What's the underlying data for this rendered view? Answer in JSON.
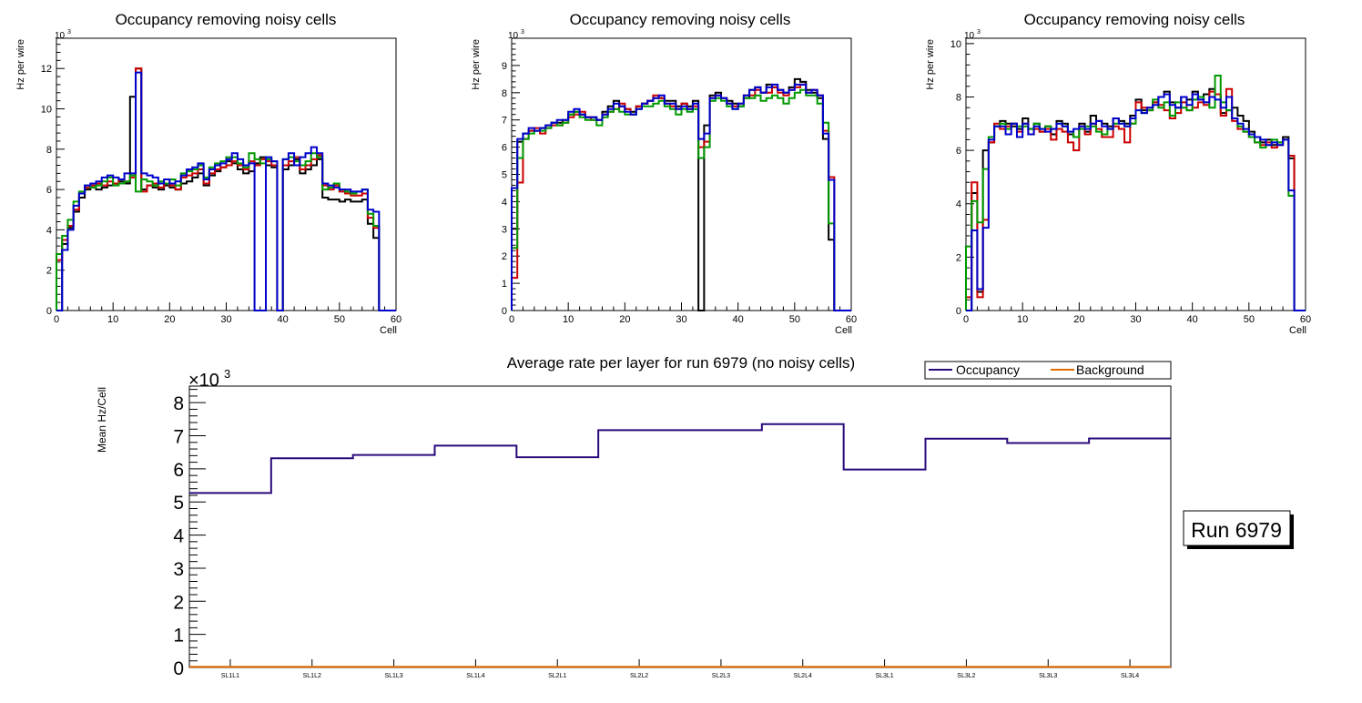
{
  "chart_data": [
    {
      "type": "line",
      "title": "Occupancy removing noisy cells",
      "xlabel": "Cell",
      "ylabel": "Hz per wire",
      "multiplier": "10",
      "multiplier_exp": "3",
      "xlim": [
        0,
        60
      ],
      "ylim": [
        0,
        13.5
      ],
      "x_ticks": [
        0,
        10,
        20,
        30,
        40,
        50,
        60
      ],
      "y_ticks": [
        0,
        2,
        4,
        6,
        8,
        10,
        12
      ],
      "series": [
        {
          "name": "black",
          "color": "#000000",
          "values": [
            0,
            3.3,
            4.1,
            4.9,
            5.6,
            6.0,
            6.1,
            6.0,
            6.1,
            6.2,
            6.3,
            6.4,
            6.3,
            10.6,
            12.0,
            6.0,
            6.2,
            6.1,
            6.0,
            6.2,
            6.1,
            6.0,
            6.3,
            6.4,
            6.6,
            6.8,
            6.2,
            6.7,
            6.9,
            7.1,
            7.4,
            7.3,
            7.0,
            6.8,
            6.9,
            7.3,
            7.6,
            7.2,
            7.1,
            0,
            7.0,
            7.2,
            7.5,
            6.8,
            7.0,
            7.2,
            7.5,
            5.6,
            5.5,
            5.5,
            5.4,
            5.5,
            5.4,
            5.4,
            5.5,
            4.3,
            3.6,
            0,
            0,
            0
          ]
        },
        {
          "name": "red",
          "color": "#cc0000",
          "values": [
            2.5,
            3.5,
            4.2,
            5.0,
            5.8,
            6.1,
            6.2,
            6.3,
            6.2,
            6.4,
            6.3,
            6.5,
            6.4,
            6.6,
            12.0,
            5.9,
            6.2,
            6.3,
            6.1,
            6.3,
            6.2,
            6.0,
            6.6,
            6.7,
            6.8,
            7.0,
            6.3,
            6.8,
            7.0,
            7.1,
            7.2,
            7.4,
            7.2,
            7.0,
            7.4,
            7.2,
            7.5,
            7.4,
            7.2,
            0,
            7.2,
            7.4,
            7.6,
            7.0,
            7.2,
            7.5,
            7.7,
            6.2,
            6.0,
            6.2,
            5.9,
            5.8,
            5.7,
            5.7,
            5.8,
            4.6,
            4.1,
            0,
            0,
            0
          ]
        },
        {
          "name": "green",
          "color": "#009900",
          "values": [
            2.8,
            3.7,
            4.5,
            5.4,
            5.9,
            6.2,
            6.1,
            6.2,
            6.4,
            6.6,
            6.2,
            6.3,
            6.4,
            6.7,
            5.9,
            6.5,
            6.4,
            6.2,
            6.4,
            6.3,
            6.5,
            6.2,
            6.8,
            6.9,
            7.0,
            7.2,
            6.6,
            7.1,
            7.3,
            7.4,
            7.6,
            7.6,
            7.3,
            7.1,
            7.8,
            7.5,
            7.3,
            7.5,
            7.4,
            0,
            7.5,
            7.6,
            7.4,
            7.2,
            7.4,
            7.8,
            7.6,
            6.0,
            6.1,
            6.3,
            6.0,
            5.9,
            5.8,
            5.9,
            6.0,
            4.8,
            4.2,
            0,
            0,
            0
          ]
        },
        {
          "name": "blue",
          "color": "#0000cc",
          "values": [
            0,
            3.0,
            4.0,
            5.2,
            5.8,
            6.2,
            6.3,
            6.4,
            6.6,
            6.7,
            6.6,
            6.5,
            6.8,
            6.8,
            11.8,
            6.8,
            6.7,
            6.6,
            6.3,
            6.5,
            6.3,
            6.4,
            6.7,
            7.0,
            7.1,
            7.3,
            6.5,
            7.0,
            7.2,
            7.3,
            7.5,
            7.8,
            7.5,
            7.2,
            7.3,
            0,
            0,
            7.6,
            7.4,
            0,
            7.5,
            7.8,
            7.2,
            7.6,
            7.8,
            8.1,
            7.8,
            6.3,
            6.2,
            6.1,
            6.0,
            6.0,
            5.9,
            5.9,
            6.0,
            5.0,
            4.9,
            0,
            0,
            0
          ]
        }
      ]
    },
    {
      "type": "line",
      "title": "Occupancy removing noisy cells",
      "xlabel": "Cell",
      "ylabel": "Hz per wire",
      "multiplier": "10",
      "multiplier_exp": "3",
      "xlim": [
        0,
        60
      ],
      "ylim": [
        0,
        10
      ],
      "x_ticks": [
        0,
        10,
        20,
        30,
        40,
        50,
        60
      ],
      "y_ticks": [
        0,
        1,
        2,
        3,
        4,
        5,
        6,
        7,
        8,
        9
      ],
      "series": [
        {
          "name": "black",
          "color": "#000000",
          "values": [
            3.0,
            6.2,
            6.5,
            6.6,
            6.6,
            6.7,
            6.8,
            6.9,
            6.9,
            7.0,
            7.2,
            7.3,
            7.2,
            7.1,
            7.1,
            7.0,
            7.3,
            7.5,
            7.7,
            7.5,
            7.4,
            7.3,
            7.5,
            7.6,
            7.7,
            7.8,
            7.8,
            7.7,
            7.7,
            7.5,
            7.6,
            7.5,
            7.7,
            0,
            6.8,
            7.9,
            8.0,
            7.8,
            7.7,
            7.6,
            7.5,
            7.8,
            8.1,
            8.2,
            8.0,
            8.3,
            8.2,
            8.1,
            8.0,
            8.2,
            8.5,
            8.4,
            8.1,
            8.0,
            7.8,
            6.3,
            2.6,
            0,
            0,
            0
          ]
        },
        {
          "name": "red",
          "color": "#cc0000",
          "values": [
            1.2,
            4.7,
            6.3,
            6.6,
            6.7,
            6.5,
            6.7,
            6.8,
            6.8,
            6.9,
            7.1,
            7.2,
            7.3,
            7.1,
            7.0,
            7.0,
            7.2,
            7.3,
            7.4,
            7.6,
            7.4,
            7.2,
            7.5,
            7.6,
            7.7,
            7.9,
            7.8,
            7.6,
            7.5,
            7.4,
            7.6,
            7.4,
            7.5,
            6.0,
            6.2,
            7.8,
            7.9,
            7.8,
            7.6,
            7.5,
            7.6,
            7.9,
            7.9,
            8.1,
            8.0,
            8.0,
            8.2,
            8.0,
            7.9,
            8.1,
            8.2,
            8.3,
            8.0,
            8.1,
            7.9,
            6.6,
            4.9,
            0,
            0,
            0
          ]
        },
        {
          "name": "green",
          "color": "#009900",
          "values": [
            2.3,
            5.6,
            6.3,
            6.5,
            6.6,
            6.6,
            6.7,
            6.9,
            6.8,
            6.9,
            7.2,
            7.3,
            7.1,
            7.0,
            7.0,
            6.8,
            7.1,
            7.3,
            7.4,
            7.3,
            7.2,
            7.2,
            7.4,
            7.5,
            7.5,
            7.6,
            7.7,
            7.5,
            7.4,
            7.2,
            7.4,
            7.3,
            7.4,
            5.6,
            6.0,
            7.7,
            7.8,
            7.7,
            7.5,
            7.4,
            7.5,
            7.8,
            7.8,
            7.9,
            7.7,
            7.8,
            7.9,
            7.8,
            7.6,
            7.8,
            8.0,
            8.1,
            7.9,
            7.9,
            7.6,
            6.9,
            3.2,
            0,
            0,
            0
          ]
        },
        {
          "name": "blue",
          "color": "#0000cc",
          "values": [
            4.5,
            6.3,
            6.5,
            6.7,
            6.6,
            6.7,
            6.8,
            6.9,
            7.0,
            7.0,
            7.3,
            7.4,
            7.2,
            7.1,
            7.1,
            7.0,
            7.2,
            7.4,
            7.6,
            7.5,
            7.3,
            7.2,
            7.4,
            7.6,
            7.7,
            7.8,
            7.9,
            7.6,
            7.6,
            7.4,
            7.5,
            7.4,
            7.6,
            6.3,
            6.5,
            7.8,
            7.9,
            7.8,
            7.6,
            7.4,
            7.6,
            7.9,
            8.1,
            8.2,
            8.0,
            8.2,
            8.3,
            8.1,
            8.0,
            8.1,
            8.3,
            8.3,
            8.0,
            8.1,
            7.9,
            6.5,
            4.8,
            0,
            0,
            0
          ]
        }
      ]
    },
    {
      "type": "line",
      "title": "Occupancy removing noisy cells",
      "xlabel": "Cell",
      "ylabel": "Hz per wire",
      "multiplier": "10",
      "multiplier_exp": "3",
      "xlim": [
        0,
        60
      ],
      "ylim": [
        0,
        10.2
      ],
      "x_ticks": [
        0,
        10,
        20,
        30,
        40,
        50,
        60
      ],
      "y_ticks": [
        0,
        2,
        4,
        6,
        8,
        10
      ],
      "series": [
        {
          "name": "black",
          "color": "#000000",
          "values": [
            0,
            4.4,
            0.7,
            6.0,
            6.3,
            6.9,
            7.1,
            7.0,
            6.9,
            6.8,
            7.2,
            6.8,
            7.0,
            6.7,
            6.9,
            6.6,
            7.1,
            7.0,
            6.6,
            6.5,
            7.0,
            6.7,
            7.3,
            7.1,
            7.0,
            6.9,
            7.2,
            7.1,
            7.0,
            7.3,
            7.9,
            7.5,
            7.6,
            7.8,
            8.0,
            8.2,
            7.8,
            7.6,
            8.0,
            7.9,
            8.2,
            7.9,
            8.1,
            8.3,
            8.1,
            7.4,
            7.5,
            7.6,
            7.3,
            7.1,
            6.7,
            6.5,
            6.3,
            6.4,
            6.2,
            6.3,
            6.5,
            5.7,
            0,
            0
          ]
        },
        {
          "name": "red",
          "color": "#cc0000",
          "values": [
            0.5,
            4.8,
            0.5,
            3.4,
            6.3,
            7.0,
            6.8,
            6.9,
            7.0,
            6.7,
            7.0,
            6.6,
            6.8,
            6.7,
            6.8,
            6.4,
            6.8,
            6.7,
            6.3,
            6.0,
            6.9,
            6.6,
            7.0,
            6.8,
            6.5,
            6.5,
            6.9,
            6.8,
            6.3,
            7.0,
            7.8,
            7.6,
            7.5,
            7.8,
            7.7,
            7.5,
            7.2,
            7.4,
            7.8,
            7.5,
            7.6,
            7.8,
            7.7,
            8.2,
            8.1,
            7.3,
            8.3,
            7.1,
            6.8,
            6.7,
            6.5,
            6.3,
            6.2,
            6.3,
            6.1,
            6.2,
            6.4,
            5.8,
            0,
            0
          ]
        },
        {
          "name": "green",
          "color": "#009900",
          "values": [
            2.4,
            4.1,
            3.3,
            5.3,
            6.5,
            6.9,
            7.0,
            6.8,
            7.0,
            6.9,
            6.9,
            6.8,
            7.0,
            6.8,
            6.9,
            6.8,
            7.0,
            6.9,
            6.7,
            6.5,
            6.8,
            6.9,
            6.9,
            6.7,
            6.6,
            6.8,
            7.0,
            7.0,
            6.9,
            7.0,
            7.5,
            7.4,
            7.5,
            7.9,
            7.6,
            7.8,
            7.3,
            7.8,
            7.6,
            7.5,
            7.9,
            8.0,
            7.8,
            7.6,
            8.8,
            7.8,
            7.5,
            7.2,
            6.9,
            6.7,
            6.5,
            6.3,
            6.1,
            6.2,
            6.4,
            6.3,
            6.4,
            4.3,
            0,
            0
          ]
        },
        {
          "name": "blue",
          "color": "#0000cc",
          "values": [
            0,
            3.0,
            0.8,
            3.1,
            6.4,
            6.9,
            6.9,
            6.6,
            7.0,
            6.5,
            7.0,
            6.6,
            6.9,
            6.8,
            6.7,
            6.8,
            7.0,
            6.9,
            6.7,
            6.8,
            6.9,
            6.8,
            7.0,
            7.1,
            6.9,
            6.8,
            7.2,
            7.0,
            6.9,
            7.2,
            7.5,
            7.4,
            7.6,
            7.7,
            8.0,
            8.1,
            7.7,
            7.6,
            8.0,
            7.7,
            8.1,
            7.9,
            7.8,
            8.0,
            7.9,
            7.6,
            8.0,
            7.2,
            7.0,
            6.8,
            6.6,
            6.5,
            6.4,
            6.2,
            6.3,
            6.2,
            6.4,
            4.5,
            0,
            0
          ]
        }
      ]
    },
    {
      "type": "line",
      "title": "Average rate per layer for run 6979 (no noisy cells)",
      "xlabel": "",
      "ylabel": "Mean Hz/Cell",
      "multiplier": "×10",
      "multiplier_exp": "3",
      "categories": [
        "SL1L1",
        "SL1L2",
        "SL1L3",
        "SL1L4",
        "SL2L1",
        "SL2L2",
        "SL2L3",
        "SL2L4",
        "SL3L1",
        "SL3L2",
        "SL3L3",
        "SL3L4"
      ],
      "ylim": [
        0,
        8.5
      ],
      "y_ticks": [
        0,
        1,
        2,
        3,
        4,
        5,
        6,
        7,
        8
      ],
      "legend": {
        "position": "top-right",
        "entries": [
          "Occupancy",
          "Background"
        ]
      },
      "series": [
        {
          "name": "Occupancy",
          "color": "#2a0a7a",
          "values": [
            5.27,
            6.32,
            6.42,
            6.7,
            6.35,
            7.17,
            7.17,
            7.35,
            5.98,
            6.91,
            6.78,
            6.92
          ]
        },
        {
          "name": "Background",
          "color": "#e06c00",
          "values": [
            0.02,
            0.02,
            0.02,
            0.02,
            0.02,
            0.02,
            0.02,
            0.02,
            0.02,
            0.02,
            0.02,
            0.02
          ]
        }
      ]
    }
  ],
  "run_label": "Run 6979"
}
